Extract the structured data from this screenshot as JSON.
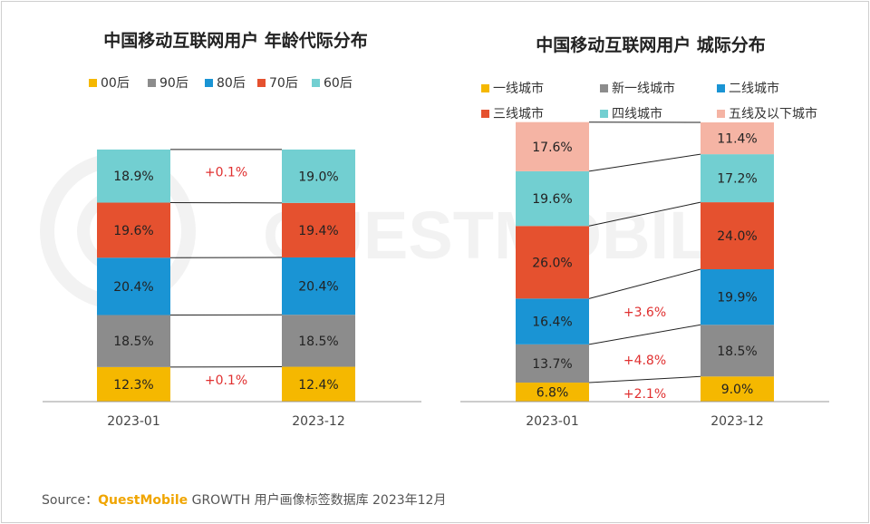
{
  "source": {
    "label": "Source：",
    "brand": "QuestMobile",
    "text": " GROWTH 用户画像标签数据库 2023年12月"
  },
  "colors": {
    "gold": "#f5b800",
    "gray": "#8c8c8c",
    "blue": "#1a94d4",
    "red": "#e5512f",
    "teal": "#72cfd1",
    "salmon": "#f5b4a4",
    "change": "#e03030"
  },
  "chart_data": [
    {
      "type": "bar",
      "stacked": true,
      "title": "中国移动互联网用户 年龄代际分布",
      "categories": [
        "2023-01",
        "2023-12"
      ],
      "legend_position": "top",
      "series": [
        {
          "name": "00后",
          "color": "#f5b800",
          "values": [
            12.3,
            12.4
          ],
          "labels": [
            "12.3%",
            "12.4%"
          ]
        },
        {
          "name": "90后",
          "color": "#8c8c8c",
          "values": [
            18.5,
            18.5
          ],
          "labels": [
            "18.5%",
            "18.5%"
          ]
        },
        {
          "name": "80后",
          "color": "#1a94d4",
          "values": [
            20.4,
            20.4
          ],
          "labels": [
            "20.4%",
            "20.4%"
          ]
        },
        {
          "name": "70后",
          "color": "#e5512f",
          "values": [
            19.6,
            19.4
          ],
          "labels": [
            "19.6%",
            "19.4%"
          ]
        },
        {
          "name": "60后",
          "color": "#72cfd1",
          "values": [
            18.9,
            19.0
          ],
          "labels": [
            "18.9%",
            "19.0%"
          ]
        }
      ],
      "annotations": [
        {
          "series": "60后",
          "text": "+0.1%"
        },
        {
          "series": "00后",
          "text": "+0.1%"
        }
      ]
    },
    {
      "type": "bar",
      "stacked": true,
      "title": "中国移动互联网用户 城际分布",
      "categories": [
        "2023-01",
        "2023-12"
      ],
      "legend_position": "top",
      "series": [
        {
          "name": "一线城市",
          "color": "#f5b800",
          "values": [
            6.8,
            9.0
          ],
          "labels": [
            "6.8%",
            "9.0%"
          ]
        },
        {
          "name": "新一线城市",
          "color": "#8c8c8c",
          "values": [
            13.7,
            18.5
          ],
          "labels": [
            "13.7%",
            "18.5%"
          ]
        },
        {
          "name": "二线城市",
          "color": "#1a94d4",
          "values": [
            16.4,
            19.9
          ],
          "labels": [
            "16.4%",
            "19.9%"
          ]
        },
        {
          "name": "三线城市",
          "color": "#e5512f",
          "values": [
            26.0,
            24.0
          ],
          "labels": [
            "26.0%",
            "24.0%"
          ]
        },
        {
          "name": "四线城市",
          "color": "#72cfd1",
          "values": [
            19.6,
            17.2
          ],
          "labels": [
            "19.6%",
            "17.2%"
          ]
        },
        {
          "name": "五线及以下城市",
          "color": "#f5b4a4",
          "values": [
            17.6,
            11.4
          ],
          "labels": [
            "17.6%",
            "11.4%"
          ]
        }
      ],
      "annotations": [
        {
          "series": "二线城市",
          "text": "+3.6%"
        },
        {
          "series": "新一线城市",
          "text": "+4.8%"
        },
        {
          "series": "一线城市",
          "text": "+2.1%"
        }
      ]
    }
  ]
}
